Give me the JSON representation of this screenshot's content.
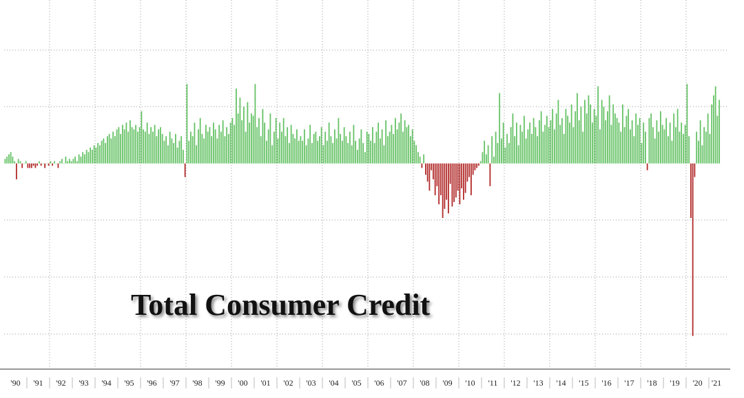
{
  "chart_data": {
    "type": "bar",
    "title": "Total Consumer Credit",
    "color": "#66c266",
    "negative_color": "#b22a2a",
    "ylim": [
      -90,
      72
    ],
    "categories": [
      null,
      null,
      null,
      null,
      null,
      null,
      "'90",
      null,
      null,
      null,
      null,
      null,
      null,
      null,
      null,
      null,
      null,
      null,
      "'91",
      null,
      null,
      null,
      null,
      null,
      null,
      null,
      null,
      null,
      null,
      null,
      "'92",
      null,
      null,
      null,
      null,
      null,
      null,
      null,
      null,
      null,
      null,
      null,
      "'93",
      null,
      null,
      null,
      null,
      null,
      null,
      null,
      null,
      null,
      null,
      null,
      "'94",
      null,
      null,
      null,
      null,
      null,
      null,
      null,
      null,
      null,
      null,
      null,
      "'95",
      null,
      null,
      null,
      null,
      null,
      null,
      null,
      null,
      null,
      null,
      null,
      "'96",
      null,
      null,
      null,
      null,
      null,
      null,
      null,
      null,
      null,
      null,
      null,
      "'97",
      null,
      null,
      null,
      null,
      null,
      null,
      null,
      null,
      null,
      null,
      null,
      "'98",
      null,
      null,
      null,
      null,
      null,
      null,
      null,
      null,
      null,
      null,
      null,
      "'99",
      null,
      null,
      null,
      null,
      null,
      null,
      null,
      null,
      null,
      null,
      null,
      "'00",
      null,
      null,
      null,
      null,
      null,
      null,
      null,
      null,
      null,
      null,
      null,
      "'01",
      null,
      null,
      null,
      null,
      null,
      null,
      null,
      null,
      null,
      null,
      null,
      "'02",
      null,
      null,
      null,
      null,
      null,
      null,
      null,
      null,
      null,
      null,
      null,
      "'03",
      null,
      null,
      null,
      null,
      null,
      null,
      null,
      null,
      null,
      null,
      null,
      "'04",
      null,
      null,
      null,
      null,
      null,
      null,
      null,
      null,
      null,
      null,
      null,
      "'05",
      null,
      null,
      null,
      null,
      null,
      null,
      null,
      null,
      null,
      null,
      null,
      "'06",
      null,
      null,
      null,
      null,
      null,
      null,
      null,
      null,
      null,
      null,
      null,
      "'07",
      null,
      null,
      null,
      null,
      null,
      null,
      null,
      null,
      null,
      null,
      null,
      "'08",
      null,
      null,
      null,
      null,
      null,
      null,
      null,
      null,
      null,
      null,
      null,
      "'09",
      null,
      null,
      null,
      null,
      null,
      null,
      null,
      null,
      null,
      null,
      null,
      "'10",
      null,
      null,
      null,
      null,
      null,
      null,
      null,
      null,
      null,
      null,
      null,
      "'11",
      null,
      null,
      null,
      null,
      null,
      null,
      null,
      null,
      null,
      null,
      null,
      "'12",
      null,
      null,
      null,
      null,
      null,
      null,
      null,
      null,
      null,
      null,
      null,
      "'13",
      null,
      null,
      null,
      null,
      null,
      null,
      null,
      null,
      null,
      null,
      null,
      "'14",
      null,
      null,
      null,
      null,
      null,
      null,
      null,
      null,
      null,
      null,
      null,
      "'15",
      null,
      null,
      null,
      null,
      null,
      null,
      null,
      null,
      null,
      null,
      null,
      "'16",
      null,
      null,
      null,
      null,
      null,
      null,
      null,
      null,
      null,
      null,
      null,
      "'17",
      null,
      null,
      null,
      null,
      null,
      null,
      null,
      null,
      null,
      null,
      null,
      "'18",
      null,
      null,
      null,
      null,
      null,
      null,
      null,
      null,
      null,
      null,
      null,
      "'19",
      null,
      null,
      null,
      null,
      null,
      null,
      null,
      null,
      null,
      null,
      null,
      "'20",
      null,
      null,
      null,
      null,
      null,
      null,
      null,
      null,
      null,
      "'21",
      null
    ],
    "values": [
      2,
      3,
      4,
      5,
      3,
      1,
      -7,
      2,
      1,
      -2,
      0,
      1,
      -2,
      -2,
      -2,
      -1,
      -2,
      -1,
      1,
      -1,
      0,
      -2,
      0,
      -1,
      1,
      -1,
      1,
      0,
      -2,
      1,
      2,
      0,
      3,
      1,
      2,
      1,
      2,
      3,
      1,
      4,
      3,
      5,
      4,
      6,
      5,
      7,
      6,
      8,
      7,
      9,
      8,
      10,
      11,
      9,
      12,
      13,
      11,
      14,
      12,
      15,
      16,
      13,
      17,
      15,
      18,
      14,
      19,
      16,
      15,
      17,
      14,
      16,
      23,
      15,
      14,
      18,
      13,
      16,
      14,
      17,
      12,
      15,
      16,
      13,
      10,
      12,
      8,
      14,
      11,
      9,
      13,
      7,
      10,
      12,
      6,
      -6,
      35,
      10,
      14,
      12,
      18,
      8,
      15,
      20,
      13,
      11,
      17,
      14,
      16,
      12,
      18,
      15,
      11,
      17,
      14,
      19,
      12,
      16,
      13,
      18,
      20,
      17,
      33,
      22,
      29,
      19,
      25,
      14,
      27,
      18,
      22,
      21,
      35,
      16,
      20,
      12,
      24,
      18,
      10,
      15,
      22,
      8,
      14,
      20,
      11,
      18,
      14,
      20,
      12,
      16,
      9,
      17,
      13,
      11,
      15,
      10,
      12,
      10,
      15,
      8,
      11,
      17,
      9,
      13,
      14,
      10,
      12,
      16,
      8,
      14,
      10,
      18,
      12,
      9,
      15,
      11,
      20,
      13,
      10,
      16,
      12,
      9,
      14,
      8,
      17,
      10,
      6,
      11,
      15,
      9,
      5,
      14,
      13,
      10,
      16,
      9,
      14,
      18,
      11,
      15,
      8,
      19,
      12,
      14,
      17,
      13,
      20,
      15,
      18,
      22,
      14,
      19,
      16,
      17,
      12,
      15,
      10,
      8,
      5,
      3,
      -2,
      4,
      -5,
      -8,
      -12,
      -3,
      -7,
      -14,
      -10,
      -18,
      -14,
      -24,
      -20,
      -16,
      -22,
      -9,
      -19,
      -17,
      -15,
      -12,
      -18,
      -11,
      -16,
      -13,
      -8,
      -6,
      -14,
      -5,
      -3,
      -2,
      -1,
      1,
      5,
      10,
      4,
      8,
      -10,
      12,
      3,
      14,
      9,
      31,
      11,
      18,
      7,
      13,
      9,
      16,
      22,
      12,
      18,
      8,
      17,
      14,
      21,
      11,
      15,
      18,
      13,
      20,
      16,
      12,
      19,
      23,
      14,
      17,
      21,
      16,
      19,
      24,
      15,
      22,
      28,
      17,
      20,
      13,
      24,
      21,
      18,
      26,
      16,
      23,
      31,
      19,
      25,
      14,
      28,
      22,
      30,
      26,
      18,
      24,
      21,
      34,
      15,
      28,
      25,
      19,
      23,
      30,
      17,
      26,
      22,
      20,
      18,
      14,
      26,
      16,
      21,
      24,
      15,
      19,
      12,
      22,
      17,
      20,
      9,
      18,
      14,
      -3,
      20,
      22,
      16,
      11,
      19,
      14,
      23,
      17,
      15,
      20,
      12,
      18,
      10,
      22,
      16,
      24,
      14,
      18,
      13,
      17,
      35,
      12,
      -24,
      -76,
      -6,
      14,
      10,
      19,
      8,
      16,
      14,
      22,
      13,
      26,
      30,
      34,
      21,
      28
    ]
  }
}
